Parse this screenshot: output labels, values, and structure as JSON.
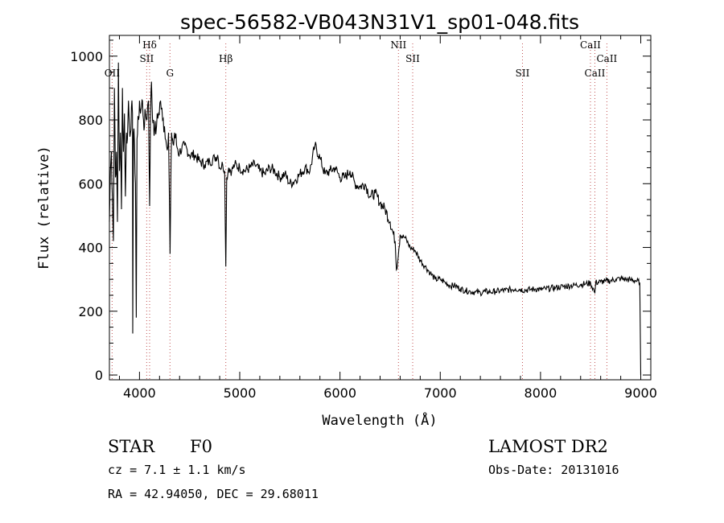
{
  "chart_data": {
    "type": "line",
    "title": "spec-56582-VB043N31V1_sp01-048.fits",
    "xlabel": "Wavelength (Å)",
    "ylabel": "Flux (relative)",
    "xlim": [
      3700,
      9100
    ],
    "ylim": [
      -15,
      1065
    ],
    "xticks": [
      "4000",
      "5000",
      "6000",
      "7000",
      "8000",
      "9000"
    ],
    "yticks": [
      "0",
      "200",
      "400",
      "600",
      "800",
      "1000"
    ],
    "grid": false,
    "series": [
      {
        "x": [
          3700,
          3710,
          3720,
          3730,
          3740,
          3750,
          3760,
          3770,
          3780,
          3790,
          3800,
          3810,
          3820,
          3830,
          3840,
          3850,
          3860,
          3870,
          3880,
          3890,
          3900,
          3910,
          3920,
          3930,
          3933,
          3940,
          3950,
          3960,
          3968,
          3975,
          3990,
          4000,
          4010,
          4020,
          4030,
          4040,
          4050,
          4060,
          4070,
          4080,
          4090,
          4101,
          4110,
          4120,
          4130,
          4140,
          4150,
          4170,
          4190,
          4210,
          4230,
          4250,
          4270,
          4290,
          4305,
          4320,
          4330,
          4340,
          4350,
          4370,
          4400,
          4450,
          4500,
          4550,
          4600,
          4650,
          4700,
          4750,
          4780,
          4800,
          4830,
          4850,
          4861,
          4870,
          4890,
          4920,
          4950,
          5000,
          5050,
          5100,
          5150,
          5200,
          5250,
          5300,
          5350,
          5400,
          5450,
          5500,
          5550,
          5600,
          5650,
          5700,
          5750,
          5800,
          5850,
          5900,
          5950,
          6000,
          6050,
          6100,
          6150,
          6200,
          6250,
          6300,
          6350,
          6400,
          6450,
          6500,
          6550,
          6563,
          6600,
          6650,
          6700,
          6750,
          6800,
          6850,
          6900,
          6950,
          7000,
          7050,
          7100,
          7150,
          7200,
          7250,
          7300,
          7350,
          7400,
          7450,
          7500,
          7550,
          7600,
          7650,
          7700,
          7750,
          7800,
          7850,
          7900,
          7950,
          8000,
          8050,
          8100,
          8150,
          8200,
          8250,
          8300,
          8350,
          8400,
          8450,
          8500,
          8542,
          8550,
          8600,
          8650,
          8700,
          8750,
          8800,
          8850,
          8900,
          8950,
          8990,
          9000
        ],
        "y": [
          480,
          640,
          700,
          560,
          420,
          900,
          620,
          700,
          480,
          980,
          640,
          760,
          520,
          900,
          700,
          820,
          560,
          760,
          740,
          860,
          780,
          760,
          840,
          820,
          130,
          760,
          720,
          600,
          180,
          740,
          800,
          860,
          820,
          840,
          860,
          800,
          780,
          820,
          800,
          840,
          860,
          530,
          820,
          920,
          800,
          800,
          760,
          780,
          820,
          860,
          800,
          780,
          720,
          760,
          380,
          760,
          740,
          720,
          760,
          720,
          700,
          720,
          690,
          690,
          670,
          660,
          670,
          680,
          690,
          650,
          660,
          640,
          340,
          620,
          650,
          640,
          660,
          650,
          640,
          650,
          660,
          640,
          630,
          650,
          640,
          620,
          630,
          600,
          610,
          630,
          650,
          640,
          720,
          680,
          630,
          640,
          650,
          620,
          620,
          640,
          600,
          590,
          600,
          560,
          570,
          540,
          520,
          480,
          420,
          330,
          440,
          430,
          400,
          390,
          360,
          340,
          320,
          300,
          300,
          290,
          280,
          280,
          270,
          265,
          262,
          260,
          258,
          262,
          260,
          262,
          264,
          266,
          268,
          270,
          268,
          266,
          268,
          270,
          268,
          270,
          272,
          274,
          276,
          278,
          280,
          282,
          284,
          286,
          288,
          258,
          290,
          292,
          294,
          296,
          300,
          302,
          300,
          298,
          296,
          290,
          0
        ]
      }
    ],
    "annotations": [
      {
        "label": "OII",
        "wavelength": 3727
      },
      {
        "label": "Hδ",
        "wavelength": 4101
      },
      {
        "label": "SII",
        "wavelength": 4072
      },
      {
        "label": "G",
        "wavelength": 4304
      },
      {
        "label": "Hβ",
        "wavelength": 4861
      },
      {
        "label": "NII",
        "wavelength": 6583
      },
      {
        "label": "SII",
        "wavelength": 6725
      },
      {
        "label": "SII",
        "wavelength": 7820
      },
      {
        "label": "CaII",
        "wavelength": 8498
      },
      {
        "label": "CaII",
        "wavelength": 8542
      },
      {
        "label": "CaII",
        "wavelength": 8662
      }
    ]
  },
  "info": {
    "object": "STAR",
    "class": "F0",
    "survey": "LAMOST DR2",
    "cz": "cz = 7.1 ± 1.1 km/s",
    "obs_date": "Obs-Date: 20131016",
    "coords": "RA =  42.94050, DEC =  29.68011"
  }
}
